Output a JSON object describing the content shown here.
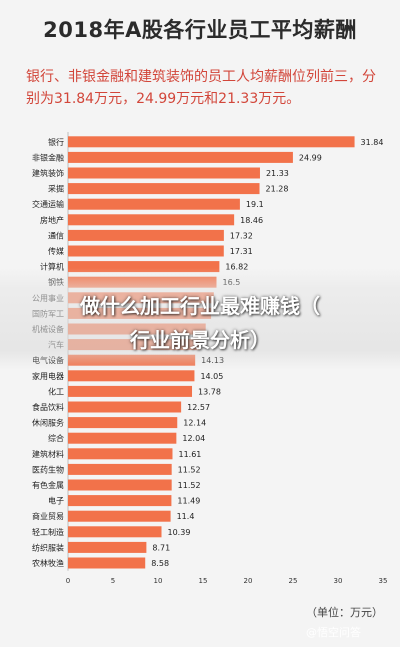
{
  "title": "2018年A股各行业员工平均薪酬",
  "subtitle": "银行、非银金融和建筑装饰的员工人均薪酬位列前三，分别为31.84万元，24.99万元和21.33万元。",
  "unit_label": "（单位：万元）",
  "banner": {
    "line1": "做什么加工行业最难赚钱（",
    "line2": "行业前景分析）"
  },
  "watermark": "@悟空问答",
  "colors": {
    "bar": "#f2724a",
    "subtitle": "#d2463a"
  },
  "chart_data": {
    "type": "bar",
    "orientation": "horizontal",
    "categories": [
      "银行",
      "非银金融",
      "建筑装饰",
      "采掘",
      "交通运输",
      "房地产",
      "通信",
      "传媒",
      "计算机",
      "钢铁",
      "公用事业",
      "国防军工",
      "机械设备",
      "汽车",
      "电气设备",
      "家用电器",
      "化工",
      "食品饮料",
      "休闲服务",
      "综合",
      "建筑材料",
      "医药生物",
      "有色金属",
      "电子",
      "商业贸易",
      "轻工制造",
      "纺织服装",
      "农林牧渔"
    ],
    "values": [
      31.84,
      24.99,
      21.33,
      21.28,
      19.1,
      18.46,
      17.32,
      17.31,
      16.82,
      16.5,
      16.2,
      15.9,
      15.3,
      14.6,
      14.13,
      14.05,
      13.78,
      12.57,
      12.14,
      12.04,
      11.61,
      11.52,
      11.52,
      11.49,
      11.4,
      10.39,
      8.71,
      8.58
    ],
    "value_labels": [
      "31.84",
      "24.99",
      "21.33",
      "21.28",
      "19.1",
      "18.46",
      "17.32",
      "17.31",
      "16.82",
      "16.5",
      "",
      "",
      "",
      "",
      "14.13",
      "14.05",
      "13.78",
      "12.57",
      "12.14",
      "12.04",
      "11.61",
      "11.52",
      "11.52",
      "11.49",
      "11.4",
      "10.39",
      "8.71",
      "8.58"
    ],
    "x_ticks": [
      "0",
      "5",
      "10",
      "15",
      "20",
      "25",
      "30",
      "35"
    ],
    "xlim": [
      0,
      35
    ],
    "grid": false,
    "legend": "none"
  }
}
